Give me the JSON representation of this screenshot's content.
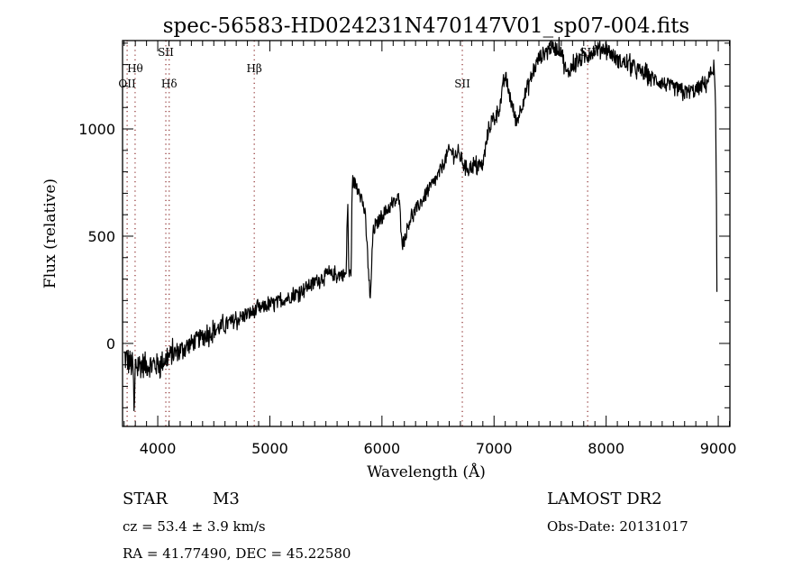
{
  "chart_data": {
    "type": "line",
    "title": "spec-56583-HD024231N470147V01_sp07-004.fits",
    "xlabel": "Wavelength (Å)",
    "ylabel": "Flux (relative)",
    "xlim": [
      3686,
      9104
    ],
    "ylim": [
      -387,
      1412
    ],
    "xticks": [
      4000,
      5000,
      6000,
      7000,
      8000,
      9000
    ],
    "xtick_labels": [
      "4000",
      "5000",
      "6000",
      "7000",
      "8000",
      "9000"
    ],
    "yticks": [
      0,
      500,
      1000
    ],
    "ytick_labels": [
      "0",
      "500",
      "1000"
    ],
    "x_minor_step": 100,
    "y_minor_step": 100,
    "grid": false,
    "line_color": "#000000",
    "marker_color": "#8b2a2a",
    "spectral_lines": [
      {
        "label": "OII",
        "wavelength": 3727,
        "row": 3
      },
      {
        "label": "Hθ",
        "wavelength": 3798,
        "row": 2
      },
      {
        "label": "SII",
        "wavelength": 4072,
        "row": 1
      },
      {
        "label": "Hδ",
        "wavelength": 4102,
        "row": 3
      },
      {
        "label": "Hβ",
        "wavelength": 4861,
        "row": 2
      },
      {
        "label": "SII",
        "wavelength": 6717,
        "row": 3
      },
      {
        "label": "SII",
        "wavelength": 7835,
        "row": 1
      }
    ],
    "series": [
      {
        "name": "flux",
        "continuum": [
          [
            3700,
            -60
          ],
          [
            3780,
            -110
          ],
          [
            3790,
            -370
          ],
          [
            3800,
            -100
          ],
          [
            4000,
            -100
          ],
          [
            4100,
            -60
          ],
          [
            4500,
            60
          ],
          [
            4900,
            160
          ],
          [
            5200,
            220
          ],
          [
            5500,
            320
          ],
          [
            5680,
            320
          ],
          [
            5695,
            680
          ],
          [
            5705,
            320
          ],
          [
            5725,
            330
          ],
          [
            5735,
            760
          ],
          [
            5800,
            720
          ],
          [
            5850,
            600
          ],
          [
            5880,
            350
          ],
          [
            5895,
            180
          ],
          [
            5920,
            520
          ],
          [
            6000,
            600
          ],
          [
            6100,
            650
          ],
          [
            6150,
            680
          ],
          [
            6185,
            460
          ],
          [
            6250,
            580
          ],
          [
            6400,
            700
          ],
          [
            6500,
            780
          ],
          [
            6600,
            900
          ],
          [
            6700,
            870
          ],
          [
            6750,
            820
          ],
          [
            6900,
            830
          ],
          [
            6950,
            1000
          ],
          [
            7050,
            1100
          ],
          [
            7100,
            1250
          ],
          [
            7150,
            1130
          ],
          [
            7200,
            1030
          ],
          [
            7300,
            1200
          ],
          [
            7400,
            1330
          ],
          [
            7500,
            1380
          ],
          [
            7600,
            1370
          ],
          [
            7650,
            1250
          ],
          [
            7700,
            1300
          ],
          [
            7800,
            1330
          ],
          [
            7900,
            1370
          ],
          [
            8000,
            1380
          ],
          [
            8100,
            1320
          ],
          [
            8200,
            1300
          ],
          [
            8400,
            1240
          ],
          [
            8600,
            1190
          ],
          [
            8700,
            1170
          ],
          [
            8800,
            1180
          ],
          [
            8900,
            1220
          ],
          [
            8960,
            1290
          ],
          [
            8975,
            1150
          ],
          [
            8985,
            600
          ],
          [
            8990,
            0
          ]
        ],
        "noise_amplitude": [
          [
            3700,
            70
          ],
          [
            4200,
            45
          ],
          [
            5000,
            30
          ],
          [
            6000,
            30
          ],
          [
            7000,
            35
          ],
          [
            8000,
            35
          ],
          [
            9000,
            35
          ]
        ]
      }
    ]
  },
  "info": {
    "object_class": "STAR",
    "subclass": "M3",
    "survey": "LAMOST DR2",
    "redshift": "cz = 53.4 ± 3.9 km/s",
    "obs_date": "Obs-Date: 20131017",
    "coords": "RA =  41.77490, DEC =  45.22580"
  }
}
